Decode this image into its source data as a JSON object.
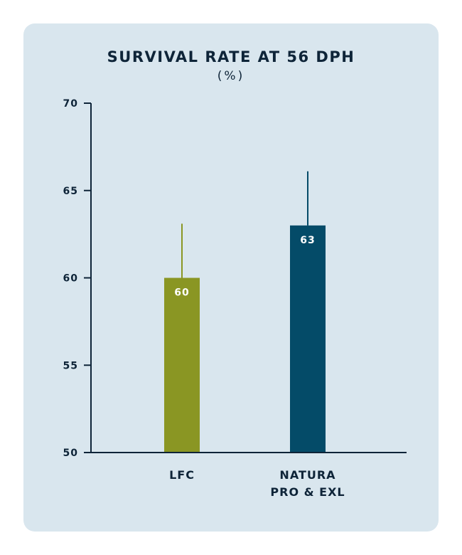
{
  "chart_data": {
    "type": "bar",
    "title": "SURVIVAL RATE AT 56 DPH",
    "subtitle": "(%)",
    "categories": [
      "LFC",
      "NATURA PRO & EXL"
    ],
    "category_lines": [
      [
        "LFC"
      ],
      [
        "NATURA",
        "PRO & EXL"
      ]
    ],
    "values": [
      60,
      63
    ],
    "value_labels": [
      "60",
      "63"
    ],
    "error_upper": [
      63.1,
      66.1
    ],
    "bar_colors": [
      "#8a9623",
      "#044b68"
    ],
    "yticks": [
      50,
      55,
      60,
      65,
      70
    ],
    "ylim": [
      50,
      70
    ],
    "xlabel": "",
    "ylabel": "",
    "grid": false,
    "legend": "none"
  },
  "colors": {
    "background": "#d9e6ee",
    "axis": "#0e2438",
    "text": "#0e2438",
    "value_label": "#ffffff"
  }
}
